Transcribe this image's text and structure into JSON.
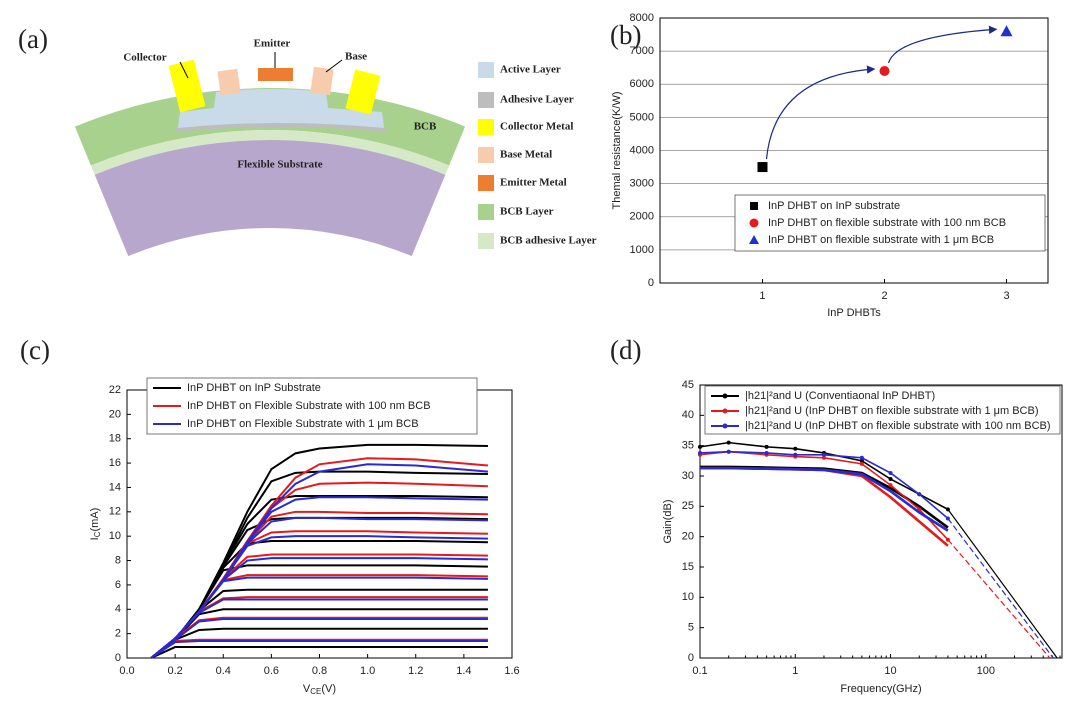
{
  "figure": {
    "panel_labels": [
      "(a)",
      "(b)",
      "(c)",
      "(d)"
    ],
    "diagram": {
      "labels": {
        "collector": "Collector",
        "emitter": "Emitter",
        "base": "Base",
        "bcb": "BCB",
        "substrate": "Flexible Substrate"
      },
      "legend": [
        {
          "label": "Active Layer",
          "color": "#c9dbe9"
        },
        {
          "label": "Adhesive Layer",
          "color": "#bdbdbd"
        },
        {
          "label": "Collector Metal",
          "color": "#ffff00"
        },
        {
          "label": "Base Metal",
          "color": "#f8cbad"
        },
        {
          "label": "Emitter Metal",
          "color": "#ed7d31"
        },
        {
          "label": "BCB Layer",
          "color": "#a9d18e"
        },
        {
          "label": "BCB adhesive Layer",
          "color": "#d6e9c6"
        }
      ]
    }
  },
  "chart_data": [
    {
      "type": "scatter",
      "xlabel": "InP DHBTs",
      "ylabel": "Themal resistance(K/W)",
      "xlim": [
        0.16,
        3.34
      ],
      "xticks": [
        1,
        2,
        3
      ],
      "ylim": [
        0,
        8000
      ],
      "yticks": [
        0,
        1000,
        2000,
        3000,
        4000,
        5000,
        6000,
        7000,
        8000
      ],
      "grid": true,
      "series": [
        {
          "name": "InP DHBT on InP substrate",
          "color": "#000000",
          "marker": "square",
          "x": [
            1
          ],
          "values": [
            3500
          ]
        },
        {
          "name": "InP DHBT on flexible substrate with 100 nm BCB",
          "color": "#e41a1c",
          "marker": "circle",
          "x": [
            2
          ],
          "values": [
            6400
          ]
        },
        {
          "name": "InP DHBT on flexible substrate with 1 μm BCB",
          "color": "#1f2fd0",
          "marker": "triangle",
          "x": [
            3
          ],
          "values": [
            7600
          ]
        }
      ]
    },
    {
      "type": "line",
      "xlabel": {
        "symbol": "V",
        "sub": "CE",
        "unit": "(V)"
      },
      "ylabel": {
        "symbol": "I",
        "sub": "C",
        "unit": "(mA)"
      },
      "xlim": [
        0,
        1.6
      ],
      "xticks": [
        {
          "value": 0,
          "label": "0.0"
        },
        0.2,
        0.4,
        0.6,
        0.8,
        {
          "value": 1,
          "label": "1.0"
        },
        1.2,
        1.4,
        1.6
      ],
      "ylim": [
        0,
        22
      ],
      "yticks": [
        0,
        2,
        4,
        6,
        8,
        10,
        12,
        14,
        16,
        18,
        20,
        22
      ],
      "x": [
        0.1,
        0.2,
        0.3,
        0.4,
        0.5,
        0.6,
        0.7,
        0.8,
        1.0,
        1.2,
        1.5
      ],
      "series": [
        {
          "name": "InP DHBT on InP Substrate",
          "color": "#000000",
          "curves": [
            [
              0,
              0.9,
              0.9,
              0.9,
              0.9,
              0.9,
              0.9,
              0.9,
              0.9,
              0.9,
              0.9
            ],
            [
              0,
              1.5,
              2.3,
              2.4,
              2.4,
              2.4,
              2.4,
              2.4,
              2.4,
              2.4,
              2.4
            ],
            [
              0,
              1.5,
              3.6,
              4,
              4,
              4,
              4,
              4,
              4,
              4,
              4
            ],
            [
              0,
              1.5,
              3.9,
              5.5,
              5.6,
              5.6,
              5.6,
              5.6,
              5.6,
              5.6,
              5.6
            ],
            [
              0,
              1.5,
              4,
              7.2,
              7.6,
              7.6,
              7.6,
              7.6,
              7.6,
              7.6,
              7.5
            ],
            [
              0,
              1.5,
              4,
              7.4,
              9.4,
              9.6,
              9.6,
              9.6,
              9.6,
              9.6,
              9.5
            ],
            [
              0,
              1.5,
              4,
              7.5,
              10.5,
              11.4,
              11.5,
              11.5,
              11.5,
              11.5,
              11.4
            ],
            [
              0,
              1.5,
              4,
              7.6,
              11,
              13,
              13.3,
              13.3,
              13.3,
              13.3,
              13.2
            ],
            [
              0,
              1.5,
              4,
              7.6,
              11.5,
              14.5,
              15.2,
              15.3,
              15.3,
              15.2,
              15.1
            ],
            [
              0,
              1.5,
              4,
              7.8,
              12,
              15.5,
              16.8,
              17.2,
              17.5,
              17.5,
              17.4
            ]
          ]
        },
        {
          "name": "InP DHBT on Flexible Substrate with 100 nm BCB",
          "color": "#e41a1c",
          "curves": [
            [
              0,
              1.4,
              1.5,
              1.5,
              1.5,
              1.5,
              1.5,
              1.5,
              1.5,
              1.5,
              1.5
            ],
            [
              0,
              1.6,
              3.1,
              3.3,
              3.3,
              3.3,
              3.3,
              3.3,
              3.3,
              3.3,
              3.3
            ],
            [
              0,
              1.6,
              3.8,
              4.9,
              5,
              5,
              5,
              5,
              5,
              5,
              5
            ],
            [
              0,
              1.6,
              3.8,
              6.4,
              6.8,
              6.8,
              6.8,
              6.8,
              6.8,
              6.8,
              6.7
            ],
            [
              0,
              1.6,
              3.8,
              6.5,
              8.3,
              8.5,
              8.5,
              8.5,
              8.5,
              8.5,
              8.4
            ],
            [
              0,
              1.6,
              3.8,
              6.5,
              9.4,
              10.3,
              10.4,
              10.4,
              10.4,
              10.3,
              10.2
            ],
            [
              0,
              1.6,
              3.8,
              6.5,
              9.5,
              11.6,
              12,
              12,
              11.9,
              11.9,
              11.8
            ],
            [
              0,
              1.6,
              3.8,
              6.5,
              9.6,
              12.3,
              13.8,
              14.3,
              14.4,
              14.3,
              14.1
            ],
            [
              0,
              1.6,
              3.8,
              6.5,
              9.6,
              12.5,
              14.8,
              15.9,
              16.4,
              16.3,
              15.8
            ]
          ]
        },
        {
          "name": "InP DHBT on Flexible Substrate with 1 μm BCB",
          "color": "#2a2ad0",
          "curves": [
            [
              0,
              1.3,
              1.4,
              1.4,
              1.4,
              1.4,
              1.4,
              1.4,
              1.4,
              1.4,
              1.4
            ],
            [
              0,
              1.5,
              3,
              3.2,
              3.2,
              3.2,
              3.2,
              3.2,
              3.2,
              3.2,
              3.2
            ],
            [
              0,
              1.6,
              3.7,
              4.8,
              4.8,
              4.8,
              4.8,
              4.8,
              4.8,
              4.8,
              4.8
            ],
            [
              0,
              1.6,
              3.8,
              6.3,
              6.6,
              6.6,
              6.6,
              6.6,
              6.6,
              6.6,
              6.5
            ],
            [
              0,
              1.6,
              3.8,
              6.4,
              8,
              8.2,
              8.2,
              8.2,
              8.2,
              8.2,
              8.1
            ],
            [
              0,
              1.6,
              3.8,
              6.4,
              9.2,
              9.9,
              10,
              10,
              10,
              9.9,
              9.8
            ],
            [
              0,
              1.6,
              3.8,
              6.4,
              9.4,
              11.2,
              11.5,
              11.5,
              11.4,
              11.4,
              11.3
            ],
            [
              0,
              1.6,
              3.8,
              6.4,
              9.5,
              12,
              13,
              13.2,
              13.2,
              13.1,
              13
            ],
            [
              0,
              1.6,
              3.8,
              6.4,
              9.5,
              12.3,
              14.3,
              15.3,
              15.9,
              15.8,
              15.3
            ]
          ]
        }
      ]
    },
    {
      "type": "line",
      "xscale": "log",
      "xlabel": "Frequency(GHz)",
      "ylabel": "Gain(dB)",
      "xlim": [
        0.1,
        630
      ],
      "xticks": [
        0.1,
        1,
        10,
        100
      ],
      "ylim": [
        0,
        45
      ],
      "yticks": [
        0,
        5,
        10,
        15,
        20,
        25,
        30,
        35,
        40,
        45
      ],
      "x": [
        0.1,
        0.2,
        0.5,
        1,
        2,
        5,
        10,
        20,
        40
      ],
      "series": [
        {
          "name": "|h21|²and U (Conventiaonal InP DHBT)",
          "color": "#000000",
          "values": [
            34.8,
            35.5,
            34.8,
            34.5,
            33.8,
            32.5,
            29.5,
            27,
            24.5
          ],
          "h21_values": [
            31.5,
            31.5,
            31.4,
            31.3,
            31.2,
            30.5,
            28,
            25,
            21.5
          ],
          "fit_x": [
            40,
            560
          ],
          "fit_values": [
            24.5,
            0
          ]
        },
        {
          "name": "|h21|²and U (InP DHBT on flexible substrate with 1 μm BCB)",
          "color": "#e41a1c",
          "values": [
            33.5,
            34,
            33.5,
            33.2,
            33,
            32,
            28.5,
            24.5,
            19.5
          ],
          "h21_values": [
            31.3,
            31.3,
            31.2,
            31.1,
            31,
            30,
            26.5,
            22.5,
            18.5
          ],
          "fit_x": [
            40,
            470
          ],
          "fit_values": [
            19.5,
            0
          ]
        },
        {
          "name": "|h21|²and U (InP DHBT on flexible substrate with 100 nm BCB)",
          "color": "#2a2ad0",
          "values": [
            33.8,
            34,
            33.8,
            33.5,
            33.5,
            33,
            30.5,
            27,
            23
          ],
          "h21_values": [
            31.3,
            31.3,
            31.2,
            31.1,
            31,
            30.3,
            27.5,
            24,
            21
          ],
          "fit_x": [
            40,
            510
          ],
          "fit_values": [
            23,
            0
          ]
        }
      ]
    }
  ]
}
